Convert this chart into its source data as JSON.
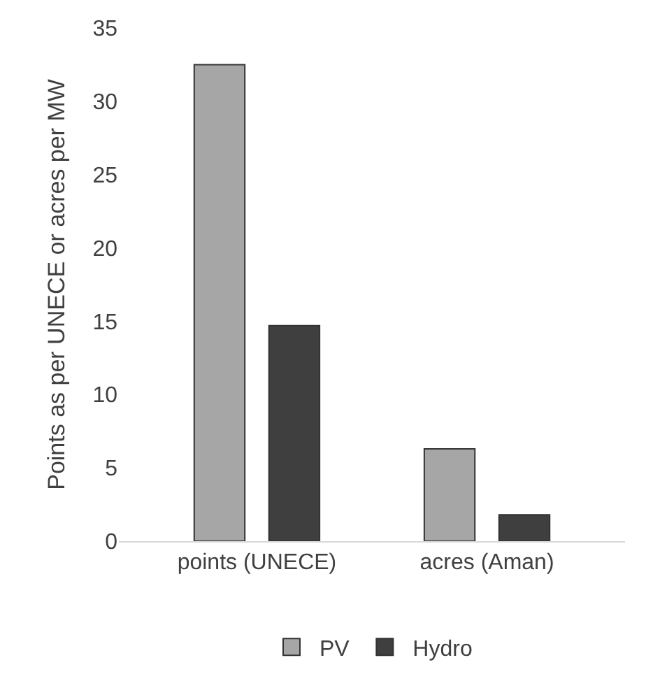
{
  "chart_data": {
    "type": "bar",
    "ylabel": "Points as per UNECE or acres per MW",
    "categories": [
      "points (UNECE)",
      "acres (Aman)"
    ],
    "series": [
      {
        "name": "PV",
        "color": "#a6a6a6",
        "values": [
          32.5,
          6.3
        ]
      },
      {
        "name": "Hydro",
        "color": "#3f3f3f",
        "values": [
          14.7,
          1.8
        ]
      }
    ],
    "ylim": [
      0,
      35
    ],
    "yticks": [
      0,
      5,
      10,
      15,
      20,
      25,
      30,
      35
    ],
    "legend": "bottom"
  }
}
